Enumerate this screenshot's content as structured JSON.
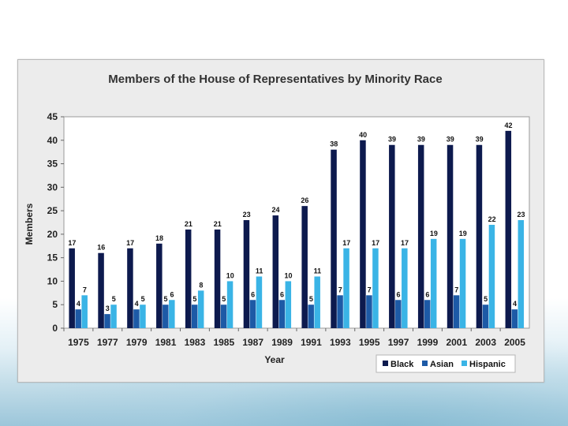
{
  "chart_data": {
    "type": "bar",
    "title": "Members of the House of Representatives by Minority Race",
    "xlabel": "Year",
    "ylabel": "Members",
    "ylim": [
      0,
      45
    ],
    "yticks": [
      0,
      5,
      10,
      15,
      20,
      25,
      30,
      35,
      40,
      45
    ],
    "grid": false,
    "legend": "bottom-right",
    "categories": [
      "1975",
      "1977",
      "1979",
      "1981",
      "1983",
      "1985",
      "1987",
      "1989",
      "1991",
      "1993",
      "1995",
      "1997",
      "1999",
      "2001",
      "2003",
      "2005"
    ],
    "series": [
      {
        "name": "Black",
        "color": "#0d1a4e",
        "values": [
          17,
          16,
          17,
          18,
          21,
          21,
          23,
          24,
          26,
          38,
          40,
          39,
          39,
          39,
          39,
          42
        ]
      },
      {
        "name": "Asian",
        "color": "#1d5aa6",
        "values": [
          4,
          3,
          4,
          5,
          5,
          5,
          6,
          6,
          5,
          7,
          7,
          6,
          6,
          7,
          5,
          4
        ]
      },
      {
        "name": "Hispanic",
        "color": "#3ab4e6",
        "values": [
          7,
          5,
          5,
          6,
          8,
          10,
          11,
          10,
          11,
          17,
          17,
          17,
          19,
          19,
          22,
          23
        ]
      }
    ]
  }
}
